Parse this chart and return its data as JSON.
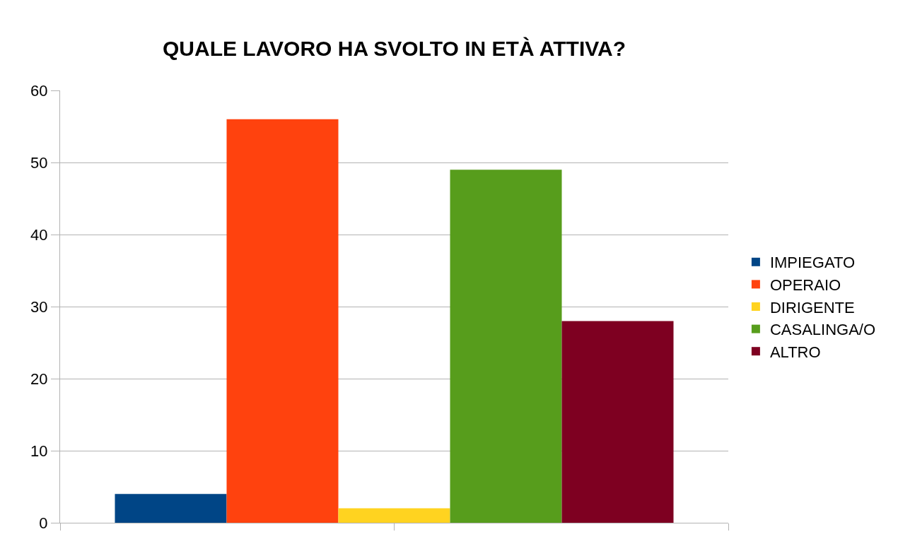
{
  "chart_data": {
    "type": "bar",
    "title": "QUALE LAVORO HA SVOLTO IN ETÀ ATTIVA?",
    "categories": [
      null
    ],
    "series": [
      {
        "name": "IMPIEGATO",
        "color": "#004586",
        "values": [
          4
        ]
      },
      {
        "name": "OPERAIO",
        "color": "#ff420e",
        "values": [
          56
        ]
      },
      {
        "name": "DIRIGENTE",
        "color": "#ffd320",
        "values": [
          2
        ]
      },
      {
        "name": "CASALINGA/O",
        "color": "#579d1c",
        "values": [
          49
        ]
      },
      {
        "name": "ALTRO",
        "color": "#7e0021",
        "values": [
          28
        ]
      }
    ],
    "ylim": [
      0,
      60
    ],
    "yticks": [
      0,
      10,
      20,
      30,
      40,
      50,
      60
    ],
    "grid": "y",
    "legend": "right"
  }
}
